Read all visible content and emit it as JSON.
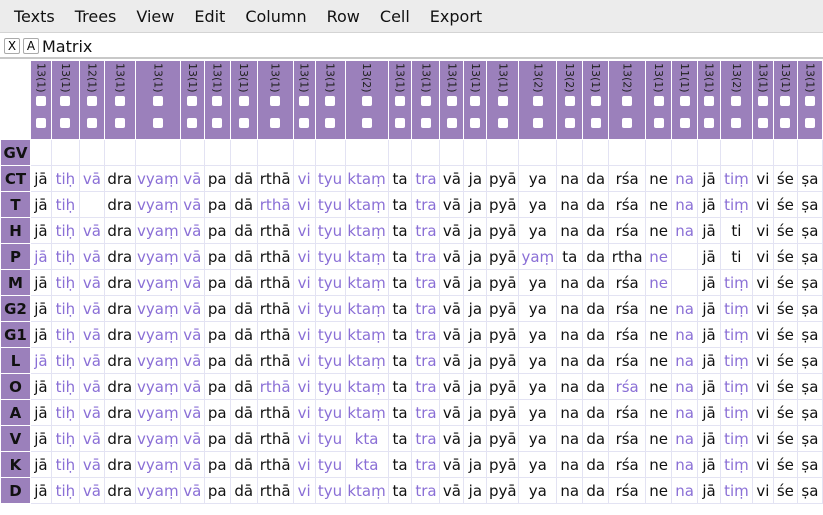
{
  "menu": [
    "Texts",
    "Trees",
    "View",
    "Edit",
    "Column",
    "Row",
    "Cell",
    "Export"
  ],
  "window": {
    "close_label": "X",
    "a_label": "A",
    "title": "Matrix"
  },
  "colors": {
    "header": "#9b80bb",
    "variant_text": "#8a6fd6",
    "normal_text": "#111111"
  },
  "columns": [
    "13(1)",
    "13(1)",
    "12(1)",
    "13(1)",
    "13(1)",
    "13(1)",
    "13(1)",
    "13(1)",
    "13(1)",
    "13(1)",
    "13(1)",
    "13(2)",
    "13(1)",
    "13(1)",
    "13(1)",
    "13(1)",
    "13(1)",
    "13(2)",
    "13(2)",
    "13(1)",
    "13(2)",
    "13(1)",
    "11(1)",
    "13(1)",
    "13(2)",
    "13(1)",
    "13(1)",
    "13(1)"
  ],
  "base": [
    "jā",
    "tiḥ",
    "vā",
    "dra",
    "vyaṃ",
    "vā",
    "pa",
    "dā",
    "rthā",
    "vi",
    "tyu",
    "ktaṃ",
    "ta",
    "tra",
    "vā",
    "ja",
    "pyā",
    "ya",
    "na",
    "da",
    "rśa",
    "ne",
    "na",
    "jā",
    "tiṃ",
    "vi",
    "śe",
    "ṣa"
  ],
  "rows": [
    {
      "label": "GV",
      "cells": []
    },
    {
      "label": "CT",
      "cells": [
        [
          "jā",
          0
        ],
        [
          "tiḥ",
          1
        ],
        [
          "vā",
          1
        ],
        [
          "dra",
          0
        ],
        [
          "vyaṃ",
          1
        ],
        [
          "vā",
          1
        ],
        [
          "pa",
          0
        ],
        [
          "dā",
          0
        ],
        [
          "rthā",
          0
        ],
        [
          "vi",
          1
        ],
        [
          "tyu",
          1
        ],
        [
          "ktaṃ",
          1
        ],
        [
          "ta",
          0
        ],
        [
          "tra",
          1
        ],
        [
          "vā",
          0
        ],
        [
          "ja",
          0
        ],
        [
          "pyā",
          0
        ],
        [
          "ya",
          0
        ],
        [
          "na",
          0
        ],
        [
          "da",
          0
        ],
        [
          "rśa",
          0
        ],
        [
          "ne",
          0
        ],
        [
          "na",
          1
        ],
        [
          "jā",
          0
        ],
        [
          "tiṃ",
          1
        ],
        [
          "vi",
          0
        ],
        [
          "śe",
          0
        ],
        [
          "ṣa",
          0
        ]
      ]
    },
    {
      "label": "T",
      "cells": [
        [
          "jā",
          0
        ],
        [
          "tiḥ",
          1
        ],
        [
          "",
          0
        ],
        [
          "dra",
          0
        ],
        [
          "vyaṃ",
          1
        ],
        [
          "vā",
          1
        ],
        [
          "pa",
          0
        ],
        [
          "dā",
          0
        ],
        [
          "rthā",
          1
        ],
        [
          "vi",
          1
        ],
        [
          "tyu",
          1
        ],
        [
          "ktaṃ",
          1
        ],
        [
          "ta",
          0
        ],
        [
          "tra",
          1
        ],
        [
          "vā",
          0
        ],
        [
          "ja",
          0
        ],
        [
          "pyā",
          0
        ],
        [
          "ya",
          0
        ],
        [
          "na",
          0
        ],
        [
          "da",
          0
        ],
        [
          "rśa",
          0
        ],
        [
          "ne",
          0
        ],
        [
          "na",
          1
        ],
        [
          "jā",
          0
        ],
        [
          "tiṃ",
          1
        ],
        [
          "vi",
          0
        ],
        [
          "śe",
          0
        ],
        [
          "ṣa",
          0
        ]
      ]
    },
    {
      "label": "H",
      "cells": [
        [
          "jā",
          0
        ],
        [
          "tiḥ",
          1
        ],
        [
          "vā",
          1
        ],
        [
          "dra",
          0
        ],
        [
          "vyaṃ",
          1
        ],
        [
          "vā",
          1
        ],
        [
          "pa",
          0
        ],
        [
          "dā",
          0
        ],
        [
          "rthā",
          0
        ],
        [
          "vi",
          1
        ],
        [
          "tyu",
          1
        ],
        [
          "ktaṃ",
          1
        ],
        [
          "ta",
          0
        ],
        [
          "tra",
          1
        ],
        [
          "vā",
          0
        ],
        [
          "ja",
          0
        ],
        [
          "pyā",
          0
        ],
        [
          "ya",
          0
        ],
        [
          "na",
          0
        ],
        [
          "da",
          0
        ],
        [
          "rśa",
          0
        ],
        [
          "ne",
          0
        ],
        [
          "na",
          1
        ],
        [
          "jā",
          0
        ],
        [
          "ti",
          0
        ],
        [
          "vi",
          0
        ],
        [
          "śe",
          0
        ],
        [
          "ṣa",
          0
        ]
      ]
    },
    {
      "label": "P",
      "cells": [
        [
          "jā",
          1
        ],
        [
          "tiḥ",
          1
        ],
        [
          "vā",
          1
        ],
        [
          "dra",
          0
        ],
        [
          "vyaṃ",
          1
        ],
        [
          "vā",
          1
        ],
        [
          "pa",
          0
        ],
        [
          "dā",
          0
        ],
        [
          "rthā",
          0
        ],
        [
          "vi",
          1
        ],
        [
          "tyu",
          1
        ],
        [
          "ktaṃ",
          1
        ],
        [
          "ta",
          0
        ],
        [
          "tra",
          1
        ],
        [
          "vā",
          0
        ],
        [
          "ja",
          0
        ],
        [
          "pyā",
          0
        ],
        [
          "yaṃ",
          1
        ],
        [
          "ta",
          0
        ],
        [
          "da",
          0
        ],
        [
          "rtha",
          0
        ],
        [
          "ne",
          1
        ],
        [
          "",
          0
        ],
        [
          "jā",
          0
        ],
        [
          "ti",
          0
        ],
        [
          "vi",
          0
        ],
        [
          "śe",
          0
        ],
        [
          "ṣa",
          0
        ]
      ]
    },
    {
      "label": "M",
      "cells": [
        [
          "jā",
          0
        ],
        [
          "tiḥ",
          1
        ],
        [
          "vā",
          1
        ],
        [
          "dra",
          0
        ],
        [
          "vyaṃ",
          1
        ],
        [
          "vā",
          1
        ],
        [
          "pa",
          0
        ],
        [
          "dā",
          0
        ],
        [
          "rthā",
          0
        ],
        [
          "vi",
          1
        ],
        [
          "tyu",
          1
        ],
        [
          "ktaṃ",
          1
        ],
        [
          "ta",
          0
        ],
        [
          "tra",
          1
        ],
        [
          "vā",
          0
        ],
        [
          "ja",
          0
        ],
        [
          "pyā",
          0
        ],
        [
          "ya",
          0
        ],
        [
          "na",
          0
        ],
        [
          "da",
          0
        ],
        [
          "rśa",
          0
        ],
        [
          "ne",
          1
        ],
        [
          "",
          0
        ],
        [
          "jā",
          0
        ],
        [
          "tiṃ",
          1
        ],
        [
          "vi",
          0
        ],
        [
          "śe",
          0
        ],
        [
          "ṣa",
          0
        ]
      ]
    },
    {
      "label": "G2",
      "cells": [
        [
          "jā",
          0
        ],
        [
          "tiḥ",
          1
        ],
        [
          "vā",
          1
        ],
        [
          "dra",
          0
        ],
        [
          "vyaṃ",
          1
        ],
        [
          "vā",
          1
        ],
        [
          "pa",
          0
        ],
        [
          "dā",
          0
        ],
        [
          "rthā",
          0
        ],
        [
          "vi",
          1
        ],
        [
          "tyu",
          1
        ],
        [
          "ktaṃ",
          1
        ],
        [
          "ta",
          0
        ],
        [
          "tra",
          1
        ],
        [
          "vā",
          0
        ],
        [
          "ja",
          0
        ],
        [
          "pyā",
          0
        ],
        [
          "ya",
          0
        ],
        [
          "na",
          0
        ],
        [
          "da",
          0
        ],
        [
          "rśa",
          0
        ],
        [
          "ne",
          0
        ],
        [
          "na",
          1
        ],
        [
          "jā",
          0
        ],
        [
          "tiṃ",
          1
        ],
        [
          "vi",
          0
        ],
        [
          "śe",
          0
        ],
        [
          "ṣa",
          0
        ]
      ]
    },
    {
      "label": "G1",
      "cells": [
        [
          "jā",
          0
        ],
        [
          "tiḥ",
          1
        ],
        [
          "vā",
          1
        ],
        [
          "dra",
          0
        ],
        [
          "vyaṃ",
          1
        ],
        [
          "vā",
          1
        ],
        [
          "pa",
          0
        ],
        [
          "dā",
          0
        ],
        [
          "rthā",
          0
        ],
        [
          "vi",
          1
        ],
        [
          "tyu",
          1
        ],
        [
          "ktaṃ",
          1
        ],
        [
          "ta",
          0
        ],
        [
          "tra",
          1
        ],
        [
          "vā",
          0
        ],
        [
          "ja",
          0
        ],
        [
          "pyā",
          0
        ],
        [
          "ya",
          0
        ],
        [
          "na",
          0
        ],
        [
          "da",
          0
        ],
        [
          "rśa",
          0
        ],
        [
          "ne",
          0
        ],
        [
          "na",
          1
        ],
        [
          "jā",
          0
        ],
        [
          "tiṃ",
          1
        ],
        [
          "vi",
          0
        ],
        [
          "śe",
          0
        ],
        [
          "ṣa",
          0
        ]
      ]
    },
    {
      "label": "L",
      "cells": [
        [
          "jā",
          1
        ],
        [
          "tiḥ",
          1
        ],
        [
          "vā",
          1
        ],
        [
          "dra",
          0
        ],
        [
          "vyaṃ",
          1
        ],
        [
          "vā",
          1
        ],
        [
          "pa",
          0
        ],
        [
          "dā",
          0
        ],
        [
          "rthā",
          0
        ],
        [
          "vi",
          1
        ],
        [
          "tyu",
          1
        ],
        [
          "ktaṃ",
          1
        ],
        [
          "ta",
          0
        ],
        [
          "tra",
          1
        ],
        [
          "vā",
          0
        ],
        [
          "ja",
          0
        ],
        [
          "pyā",
          0
        ],
        [
          "ya",
          0
        ],
        [
          "na",
          0
        ],
        [
          "da",
          0
        ],
        [
          "rśa",
          0
        ],
        [
          "ne",
          0
        ],
        [
          "na",
          1
        ],
        [
          "jā",
          0
        ],
        [
          "tiṃ",
          1
        ],
        [
          "vi",
          0
        ],
        [
          "śe",
          0
        ],
        [
          "ṣa",
          0
        ]
      ]
    },
    {
      "label": "O",
      "cells": [
        [
          "jā",
          0
        ],
        [
          "tiḥ",
          1
        ],
        [
          "vā",
          1
        ],
        [
          "dra",
          0
        ],
        [
          "vyaṃ",
          1
        ],
        [
          "vā",
          1
        ],
        [
          "pa",
          0
        ],
        [
          "dā",
          0
        ],
        [
          "rthā",
          1
        ],
        [
          "vi",
          1
        ],
        [
          "tyu",
          1
        ],
        [
          "ktaṃ",
          1
        ],
        [
          "ta",
          0
        ],
        [
          "tra",
          1
        ],
        [
          "vā",
          0
        ],
        [
          "ja",
          0
        ],
        [
          "pyā",
          0
        ],
        [
          "ya",
          0
        ],
        [
          "na",
          0
        ],
        [
          "da",
          0
        ],
        [
          "rśa",
          1
        ],
        [
          "ne",
          0
        ],
        [
          "na",
          1
        ],
        [
          "jā",
          0
        ],
        [
          "tiṃ",
          1
        ],
        [
          "vi",
          0
        ],
        [
          "śe",
          0
        ],
        [
          "ṣa",
          0
        ]
      ]
    },
    {
      "label": "A",
      "cells": [
        [
          "jā",
          0
        ],
        [
          "tiḥ",
          1
        ],
        [
          "vā",
          1
        ],
        [
          "dra",
          0
        ],
        [
          "vyaṃ",
          1
        ],
        [
          "vā",
          1
        ],
        [
          "pa",
          0
        ],
        [
          "dā",
          0
        ],
        [
          "rthā",
          0
        ],
        [
          "vi",
          1
        ],
        [
          "tyu",
          1
        ],
        [
          "ktaṃ",
          1
        ],
        [
          "ta",
          0
        ],
        [
          "tra",
          1
        ],
        [
          "vā",
          0
        ],
        [
          "ja",
          0
        ],
        [
          "pyā",
          0
        ],
        [
          "ya",
          0
        ],
        [
          "na",
          0
        ],
        [
          "da",
          0
        ],
        [
          "rśa",
          0
        ],
        [
          "ne",
          0
        ],
        [
          "na",
          1
        ],
        [
          "jā",
          0
        ],
        [
          "tiṃ",
          1
        ],
        [
          "vi",
          0
        ],
        [
          "śe",
          0
        ],
        [
          "ṣa",
          0
        ]
      ]
    },
    {
      "label": "V",
      "cells": [
        [
          "jā",
          0
        ],
        [
          "tiḥ",
          1
        ],
        [
          "vā",
          1
        ],
        [
          "dra",
          0
        ],
        [
          "vyaṃ",
          1
        ],
        [
          "vā",
          1
        ],
        [
          "pa",
          0
        ],
        [
          "dā",
          0
        ],
        [
          "rthā",
          0
        ],
        [
          "vi",
          1
        ],
        [
          "tyu",
          1
        ],
        [
          "kta",
          1
        ],
        [
          "ta",
          0
        ],
        [
          "tra",
          1
        ],
        [
          "vā",
          0
        ],
        [
          "ja",
          0
        ],
        [
          "pyā",
          0
        ],
        [
          "ya",
          0
        ],
        [
          "na",
          0
        ],
        [
          "da",
          0
        ],
        [
          "rśa",
          0
        ],
        [
          "ne",
          0
        ],
        [
          "na",
          1
        ],
        [
          "jā",
          0
        ],
        [
          "tiṃ",
          1
        ],
        [
          "vi",
          0
        ],
        [
          "śe",
          0
        ],
        [
          "ṣa",
          0
        ]
      ]
    },
    {
      "label": "K",
      "cells": [
        [
          "jā",
          0
        ],
        [
          "tiḥ",
          1
        ],
        [
          "vā",
          1
        ],
        [
          "dra",
          0
        ],
        [
          "vyaṃ",
          1
        ],
        [
          "vā",
          1
        ],
        [
          "pa",
          0
        ],
        [
          "dā",
          0
        ],
        [
          "rthā",
          0
        ],
        [
          "vi",
          1
        ],
        [
          "tyu",
          1
        ],
        [
          "kta",
          1
        ],
        [
          "ta",
          0
        ],
        [
          "tra",
          1
        ],
        [
          "vā",
          0
        ],
        [
          "ja",
          0
        ],
        [
          "pyā",
          0
        ],
        [
          "ya",
          0
        ],
        [
          "na",
          0
        ],
        [
          "da",
          0
        ],
        [
          "rśa",
          0
        ],
        [
          "ne",
          0
        ],
        [
          "na",
          1
        ],
        [
          "jā",
          0
        ],
        [
          "tiṃ",
          1
        ],
        [
          "vi",
          0
        ],
        [
          "śe",
          0
        ],
        [
          "ṣa",
          0
        ]
      ]
    },
    {
      "label": "D",
      "cells": [
        [
          "jā",
          0
        ],
        [
          "tiḥ",
          1
        ],
        [
          "vā",
          1
        ],
        [
          "dra",
          0
        ],
        [
          "vyaṃ",
          1
        ],
        [
          "vā",
          1
        ],
        [
          "pa",
          0
        ],
        [
          "dā",
          0
        ],
        [
          "rthā",
          0
        ],
        [
          "vi",
          1
        ],
        [
          "tyu",
          1
        ],
        [
          "ktaṃ",
          1
        ],
        [
          "ta",
          0
        ],
        [
          "tra",
          1
        ],
        [
          "vā",
          0
        ],
        [
          "ja",
          0
        ],
        [
          "pyā",
          0
        ],
        [
          "ya",
          0
        ],
        [
          "na",
          0
        ],
        [
          "da",
          0
        ],
        [
          "rśa",
          0
        ],
        [
          "ne",
          0
        ],
        [
          "na",
          1
        ],
        [
          "jā",
          0
        ],
        [
          "tiṃ",
          1
        ],
        [
          "vi",
          0
        ],
        [
          "śe",
          0
        ],
        [
          "ṣa",
          0
        ]
      ]
    }
  ]
}
